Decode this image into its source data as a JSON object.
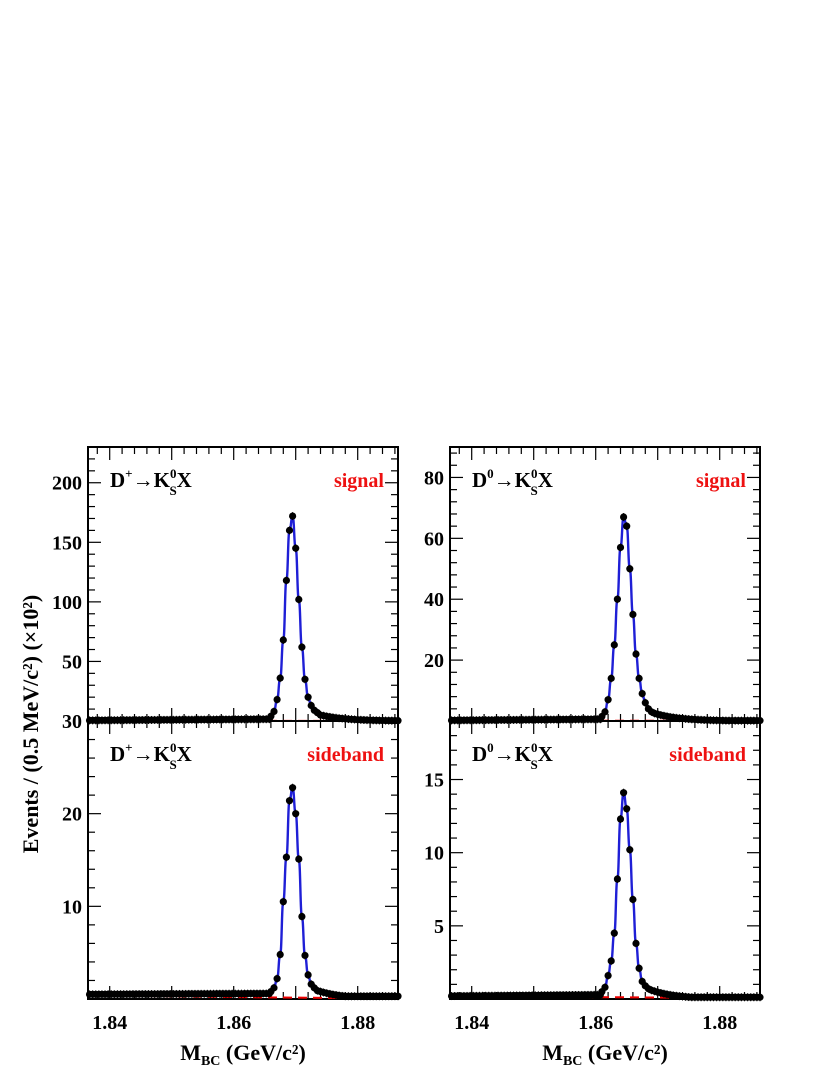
{
  "figure": {
    "ylabel": "Events / (0.5 MeV/c²) (×10²)",
    "xlabel_main": "M",
    "xlabel_sub": "BC",
    "xlabel_unit": " (GeV/c²)"
  },
  "colors": {
    "data_points": "#000000",
    "fit_total": "#1f1fd6",
    "background": "#ee0000",
    "tag_text": "#ee1111"
  },
  "chart_data": [
    {
      "type": "scatter",
      "panel": "top-left",
      "channel": "D+→KS0X",
      "channel_parts": {
        "meson": "D",
        "charge": "+",
        "arrow": "→",
        "kaon": "K",
        "kaon_sup": "0",
        "kaon_sub": "S",
        "tail": "X"
      },
      "tag": "signal",
      "xlim": [
        1.8365,
        1.8865
      ],
      "ylim": [
        0,
        230
      ],
      "yticks": [
        50,
        100,
        150,
        200
      ],
      "xticks": [
        1.84,
        1.86,
        1.88
      ],
      "peak": {
        "x": 1.8695,
        "y": 172
      },
      "baseline": 0.5,
      "bkg": {
        "start": 0.4,
        "end": 0.0
      },
      "series": [
        {
          "values": [
            [
              1.866,
              4
            ],
            [
              1.8665,
              8
            ],
            [
              1.867,
              18
            ],
            [
              1.8675,
              36
            ],
            [
              1.868,
              68
            ],
            [
              1.8685,
              118
            ],
            [
              1.869,
              160
            ],
            [
              1.8695,
              172
            ],
            [
              1.87,
              145
            ],
            [
              1.8705,
              102
            ],
            [
              1.871,
              62
            ],
            [
              1.8715,
              35
            ],
            [
              1.872,
              20
            ],
            [
              1.8725,
              13
            ],
            [
              1.873,
              9
            ],
            [
              1.8735,
              7
            ],
            [
              1.874,
              5
            ]
          ]
        }
      ]
    },
    {
      "type": "scatter",
      "panel": "top-right",
      "channel": "D0→KS0X",
      "channel_parts": {
        "meson": "D",
        "charge": "0",
        "arrow": "→",
        "kaon": "K",
        "kaon_sup": "0",
        "kaon_sub": "S",
        "tail": "X"
      },
      "tag": "signal",
      "xlim": [
        1.8365,
        1.8865
      ],
      "ylim": [
        0,
        90
      ],
      "yticks": [
        20,
        40,
        60,
        80
      ],
      "xticks": [
        1.84,
        1.86,
        1.88
      ],
      "peak": {
        "x": 1.8645,
        "y": 67
      },
      "baseline": 0.2,
      "bkg": {
        "start": 0.2,
        "end": 0.0
      },
      "series": [
        {
          "values": [
            [
              1.861,
              1.5
            ],
            [
              1.8615,
              3
            ],
            [
              1.862,
              7
            ],
            [
              1.8625,
              14
            ],
            [
              1.863,
              25
            ],
            [
              1.8635,
              40
            ],
            [
              1.864,
              57
            ],
            [
              1.8645,
              67
            ],
            [
              1.865,
              64
            ],
            [
              1.8655,
              50
            ],
            [
              1.866,
              35
            ],
            [
              1.8665,
              22
            ],
            [
              1.867,
              14
            ],
            [
              1.8675,
              9
            ],
            [
              1.868,
              6
            ],
            [
              1.8685,
              4
            ],
            [
              1.869,
              3
            ],
            [
              1.8695,
              2.5
            ]
          ]
        }
      ]
    },
    {
      "type": "scatter",
      "panel": "bottom-left",
      "channel": "D+→KS0X",
      "channel_parts": {
        "meson": "D",
        "charge": "+",
        "arrow": "→",
        "kaon": "K",
        "kaon_sup": "0",
        "kaon_sub": "S",
        "tail": "X"
      },
      "tag": "sideband",
      "xlim": [
        1.8365,
        1.8865
      ],
      "ylim": [
        0,
        30
      ],
      "yticks": [
        10,
        20,
        30
      ],
      "xticks": [
        1.84,
        1.86,
        1.88
      ],
      "peak": {
        "x": 1.8695,
        "y": 22.8
      },
      "baseline": 0.5,
      "bkg": {
        "start": 0.35,
        "end": 0.05
      },
      "series": [
        {
          "values": [
            [
              1.866,
              0.8
            ],
            [
              1.8665,
              1.2
            ],
            [
              1.867,
              2.2
            ],
            [
              1.8675,
              4.8
            ],
            [
              1.868,
              10.5
            ],
            [
              1.8685,
              15.3
            ],
            [
              1.869,
              21.4
            ],
            [
              1.8695,
              22.8
            ],
            [
              1.87,
              20.0
            ],
            [
              1.8705,
              15.1
            ],
            [
              1.871,
              8.9
            ],
            [
              1.8715,
              4.7
            ],
            [
              1.872,
              2.6
            ],
            [
              1.8725,
              1.6
            ],
            [
              1.873,
              1.2
            ],
            [
              1.8735,
              0.9
            ],
            [
              1.874,
              0.8
            ]
          ]
        }
      ]
    },
    {
      "type": "scatter",
      "panel": "bottom-right",
      "channel": "D0→KS0X",
      "channel_parts": {
        "meson": "D",
        "charge": "0",
        "arrow": "→",
        "kaon": "K",
        "kaon_sup": "0",
        "kaon_sub": "S",
        "tail": "X"
      },
      "tag": "sideband",
      "xlim": [
        1.8365,
        1.8865
      ],
      "ylim": [
        0,
        19
      ],
      "yticks": [
        5,
        10,
        15
      ],
      "xticks": [
        1.84,
        1.86,
        1.88
      ],
      "peak": {
        "x": 1.8645,
        "y": 14.1
      },
      "baseline": 0.2,
      "bkg": {
        "start": 0.2,
        "end": 0.05
      },
      "series": [
        {
          "values": [
            [
              1.861,
              0.5
            ],
            [
              1.8615,
              0.8
            ],
            [
              1.862,
              1.6
            ],
            [
              1.8625,
              2.6
            ],
            [
              1.863,
              4.5
            ],
            [
              1.8635,
              8.2
            ],
            [
              1.864,
              12.3
            ],
            [
              1.8645,
              14.1
            ],
            [
              1.865,
              13.0
            ],
            [
              1.8655,
              10.2
            ],
            [
              1.866,
              6.8
            ],
            [
              1.8665,
              3.8
            ],
            [
              1.867,
              2.1
            ],
            [
              1.8675,
              1.2
            ],
            [
              1.868,
              0.9
            ],
            [
              1.8685,
              0.7
            ],
            [
              1.869,
              0.6
            ]
          ]
        }
      ]
    }
  ]
}
